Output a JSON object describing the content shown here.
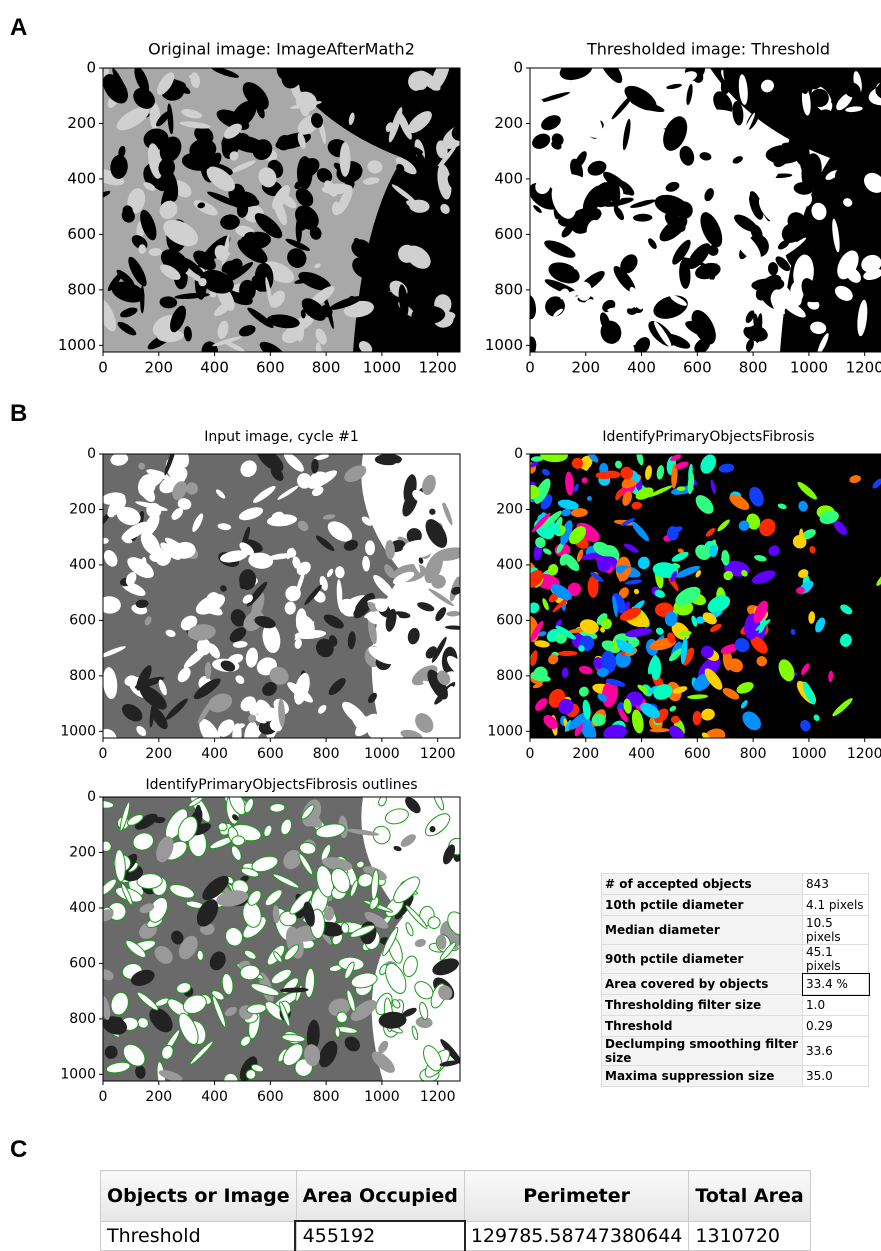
{
  "labels": {
    "a": "A",
    "b": "B",
    "c": "C"
  },
  "panels": [
    {
      "title": "Original image: ImageAfterMath2",
      "xlim": [
        0,
        1280
      ],
      "ylim": [
        0,
        1024
      ],
      "xticks": [
        0,
        200,
        400,
        600,
        800,
        1000,
        1200
      ],
      "yticks": [
        0,
        200,
        400,
        600,
        800,
        1000
      ]
    },
    {
      "title": "Thresholded image: Threshold",
      "xlim": [
        0,
        1280
      ],
      "ylim": [
        0,
        1024
      ],
      "xticks": [
        0,
        200,
        400,
        600,
        800,
        1000,
        1200
      ],
      "yticks": [
        0,
        200,
        400,
        600,
        800,
        1000
      ]
    },
    {
      "title": "Input image, cycle #1",
      "xlim": [
        0,
        1280
      ],
      "ylim": [
        0,
        1024
      ],
      "xticks": [
        0,
        200,
        400,
        600,
        800,
        1000,
        1200
      ],
      "yticks": [
        0,
        200,
        400,
        600,
        800,
        1000
      ]
    },
    {
      "title": "IdentifyPrimaryObjectsFibrosis",
      "xlim": [
        0,
        1280
      ],
      "ylim": [
        0,
        1024
      ],
      "xticks": [
        0,
        200,
        400,
        600,
        800,
        1000,
        1200
      ],
      "yticks": [
        0,
        200,
        400,
        600,
        800,
        1000
      ]
    },
    {
      "title": "IdentifyPrimaryObjectsFibrosis outlines",
      "xlim": [
        0,
        1280
      ],
      "ylim": [
        0,
        1024
      ],
      "xticks": [
        0,
        200,
        400,
        600,
        800,
        1000,
        1200
      ],
      "yticks": [
        0,
        200,
        400,
        600,
        800,
        1000
      ]
    }
  ],
  "stats": {
    "rows": [
      [
        "# of accepted objects",
        "843"
      ],
      [
        "10th pctile diameter",
        "4.1 pixels"
      ],
      [
        "Median diameter",
        "10.5 pixels"
      ],
      [
        "90th pctile diameter",
        "45.1 pixels"
      ],
      [
        "Area covered by objects",
        "33.4 %"
      ],
      [
        "Thresholding filter size",
        "1.0"
      ],
      [
        "Threshold",
        "0.29"
      ],
      [
        "Declumping smoothing filter size",
        "33.6"
      ],
      [
        "Maxima suppression size",
        "35.0"
      ]
    ]
  },
  "table": {
    "header": [
      "Objects or Image",
      "Area Occupied",
      "Perimeter",
      "Total Area"
    ],
    "rows": [
      [
        "Threshold",
        "455192",
        "129785.58747380644",
        "1310720"
      ]
    ]
  }
}
